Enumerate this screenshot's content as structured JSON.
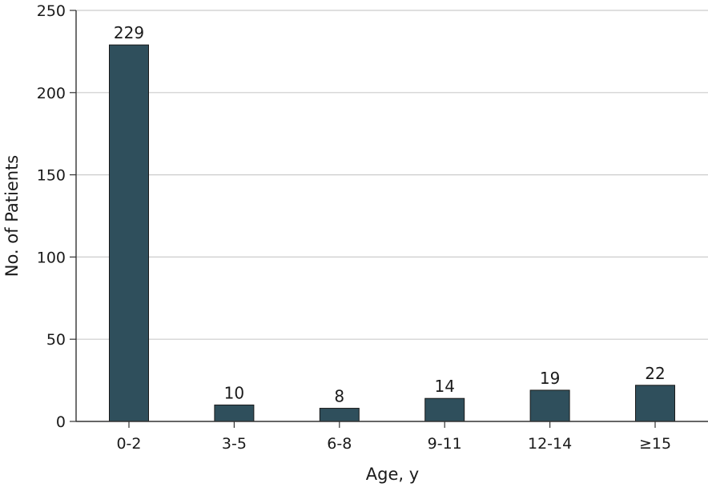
{
  "chart_data": {
    "type": "bar",
    "title": "",
    "xlabel": "Age, y",
    "ylabel": "No. of Patients",
    "categories": [
      "0-2",
      "3-5",
      "6-8",
      "9-11",
      "12-14",
      "≥15"
    ],
    "values": [
      229,
      10,
      8,
      14,
      19,
      22
    ],
    "data_labels": [
      "229",
      "10",
      "8",
      "14",
      "19",
      "22"
    ],
    "ylim": [
      0,
      250
    ],
    "yticks": [
      0,
      50,
      100,
      150,
      200,
      250
    ],
    "ytick_labels": [
      "0",
      "50",
      "100",
      "150",
      "200",
      "250"
    ],
    "grid": "horizontal",
    "legend": "none",
    "bar_color": "#2f4f5c",
    "bar_edge_color": "#1a1a1a",
    "grid_color": "#cccccc"
  }
}
